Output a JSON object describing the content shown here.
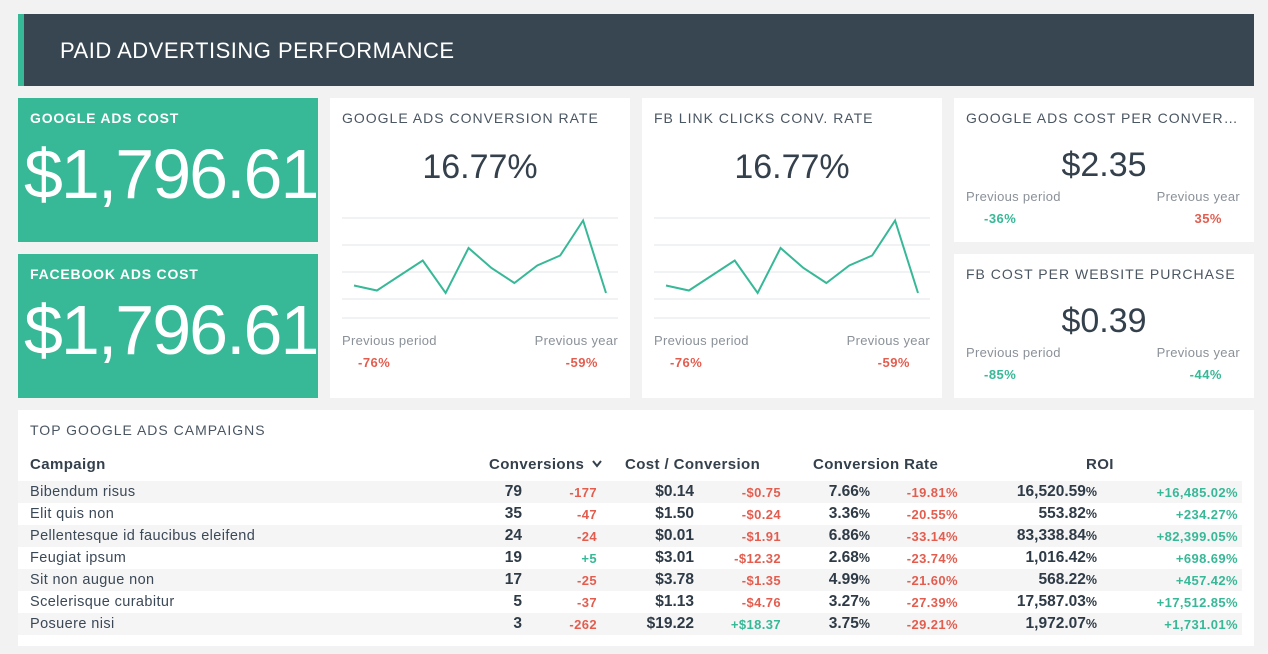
{
  "header": {
    "title": "PAID ADVERTISING PERFORMANCE"
  },
  "google_ads_cost": {
    "label": "GOOGLE ADS COST",
    "value": "$1,796.61"
  },
  "facebook_ads_cost": {
    "label": "FACEBOOK ADS COST",
    "value": "$1,796.61"
  },
  "google_conv_rate": {
    "label": "GOOGLE ADS CONVERSION RATE",
    "value": "16.77%",
    "previous_period_label": "Previous period",
    "previous_period_value": "-76%",
    "previous_year_label": "Previous year",
    "previous_year_value": "-59%",
    "sparkline": [
      2.6,
      2.2,
      3.4,
      4.6,
      2.0,
      5.6,
      4.0,
      2.8,
      4.2,
      5.0,
      7.8,
      2.0
    ]
  },
  "fb_conv_rate": {
    "label": "FB LINK CLICKS CONV. RATE",
    "value": "16.77%",
    "previous_period_label": "Previous period",
    "previous_period_value": "-76%",
    "previous_year_label": "Previous year",
    "previous_year_value": "-59%",
    "sparkline": [
      2.6,
      2.2,
      3.4,
      4.6,
      2.0,
      5.6,
      4.0,
      2.8,
      4.2,
      5.0,
      7.8,
      2.0
    ]
  },
  "google_cost_per_conv": {
    "label": "GOOGLE ADS COST PER CONVERSION",
    "value": "$2.35",
    "previous_period_label": "Previous period",
    "previous_period_value": "-36%",
    "previous_year_label": "Previous year",
    "previous_year_value": "35%"
  },
  "fb_cost_per_purchase": {
    "label": "FB COST PER WEBSITE PURCHASE",
    "value": "$0.39",
    "previous_period_label": "Previous period",
    "previous_period_value": "-85%",
    "previous_year_label": "Previous year",
    "previous_year_value": "-44%"
  },
  "campaigns": {
    "label": "TOP GOOGLE ADS CAMPAIGNS",
    "headers": {
      "campaign": "Campaign",
      "conversions": "Conversions",
      "cost_per_conversion": "Cost / Conversion",
      "conversion_rate": "Conversion Rate",
      "roi": "ROI"
    },
    "rows": [
      {
        "name": "Bibendum risus",
        "conversions": "79",
        "conv_change": "-177",
        "cost": "$0.14",
        "cost_change": "-$0.75",
        "rate": "7.66",
        "rate_change": "-19.81%",
        "roi": "16,520.59",
        "roi_change": "+16,485.02%"
      },
      {
        "name": "Elit quis non",
        "conversions": "35",
        "conv_change": "-47",
        "cost": "$1.50",
        "cost_change": "-$0.24",
        "rate": "3.36",
        "rate_change": "-20.55%",
        "roi": "553.82",
        "roi_change": "+234.27%"
      },
      {
        "name": "Pellentesque id faucibus eleifend",
        "conversions": "24",
        "conv_change": "-24",
        "cost": "$0.01",
        "cost_change": "-$1.91",
        "rate": "6.86",
        "rate_change": "-33.14%",
        "roi": "83,338.84",
        "roi_change": "+82,399.05%"
      },
      {
        "name": "Feugiat ipsum",
        "conversions": "19",
        "conv_change": "+5",
        "cost": "$3.01",
        "cost_change": "-$12.32",
        "rate": "2.68",
        "rate_change": "-23.74%",
        "roi": "1,016.42",
        "roi_change": "+698.69%"
      },
      {
        "name": "Sit non augue non",
        "conversions": "17",
        "conv_change": "-25",
        "cost": "$3.78",
        "cost_change": "-$1.35",
        "rate": "4.99",
        "rate_change": "-21.60%",
        "roi": "568.22",
        "roi_change": "+457.42%"
      },
      {
        "name": "Scelerisque curabitur",
        "conversions": "5",
        "conv_change": "-37",
        "cost": "$1.13",
        "cost_change": "-$4.76",
        "rate": "3.27",
        "rate_change": "-27.39%",
        "roi": "17,587.03",
        "roi_change": "+17,512.85%"
      },
      {
        "name": "Posuere nisi",
        "conversions": "3",
        "conv_change": "-262",
        "cost": "$19.22",
        "cost_change": "+$18.37",
        "rate": "3.75",
        "rate_change": "-29.21%",
        "roi": "1,972.07",
        "roi_change": "+1,731.01%"
      }
    ]
  },
  "colors": {
    "accent": "#37b897",
    "header_bg": "#374651",
    "negative": "#e35d4f",
    "positive": "#37b897"
  }
}
